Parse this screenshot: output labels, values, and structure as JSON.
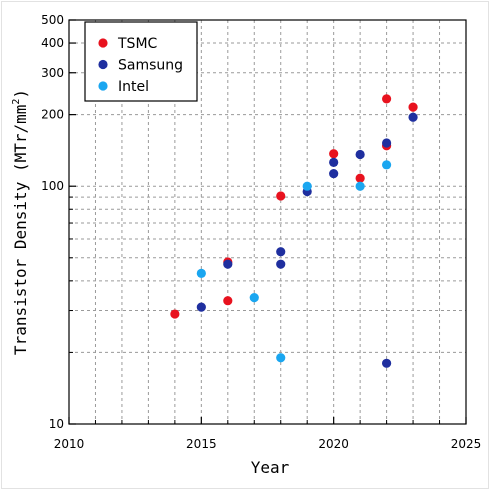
{
  "chart_data": {
    "type": "scatter",
    "xlabel": "Year",
    "ylabel_main": "Transistor Density (MTr/mm",
    "ylabel_sup": "2",
    "ylabel_end": ")",
    "xlim": [
      2010,
      2025
    ],
    "ylim": [
      10,
      500
    ],
    "yscale": "log",
    "grid": true,
    "legend_position": "top-left",
    "x_ticks": [
      2010,
      2015,
      2020,
      2025
    ],
    "x_minor_ticks": [
      2011,
      2012,
      2013,
      2014,
      2016,
      2017,
      2018,
      2019,
      2021,
      2022,
      2023,
      2024
    ],
    "y_ticks": [
      10,
      100,
      200,
      300,
      400,
      500
    ],
    "y_minor_ticks": [
      20,
      30,
      40,
      50,
      60,
      70,
      80,
      90
    ],
    "series": [
      {
        "name": "TSMC",
        "color": "#e8121e",
        "points": [
          {
            "x": 2014,
            "y": 29
          },
          {
            "x": 2016,
            "y": 48
          },
          {
            "x": 2016,
            "y": 33
          },
          {
            "x": 2018,
            "y": 91
          },
          {
            "x": 2020,
            "y": 137
          },
          {
            "x": 2021,
            "y": 108
          },
          {
            "x": 2022,
            "y": 233
          },
          {
            "x": 2022,
            "y": 148
          },
          {
            "x": 2023,
            "y": 215
          }
        ]
      },
      {
        "name": "Samsung",
        "color": "#1f2f9f",
        "points": [
          {
            "x": 2015,
            "y": 31
          },
          {
            "x": 2016,
            "y": 47
          },
          {
            "x": 2018,
            "y": 53
          },
          {
            "x": 2018,
            "y": 47
          },
          {
            "x": 2019,
            "y": 95
          },
          {
            "x": 2020,
            "y": 126
          },
          {
            "x": 2020,
            "y": 113
          },
          {
            "x": 2021,
            "y": 136
          },
          {
            "x": 2022,
            "y": 152
          },
          {
            "x": 2022,
            "y": 18
          },
          {
            "x": 2023,
            "y": 195
          }
        ]
      },
      {
        "name": "Intel",
        "color": "#1aa6f0",
        "points": [
          {
            "x": 2015,
            "y": 43
          },
          {
            "x": 2017,
            "y": 34
          },
          {
            "x": 2018,
            "y": 19
          },
          {
            "x": 2019,
            "y": 100
          },
          {
            "x": 2021,
            "y": 100
          },
          {
            "x": 2022,
            "y": 123
          }
        ]
      }
    ]
  }
}
